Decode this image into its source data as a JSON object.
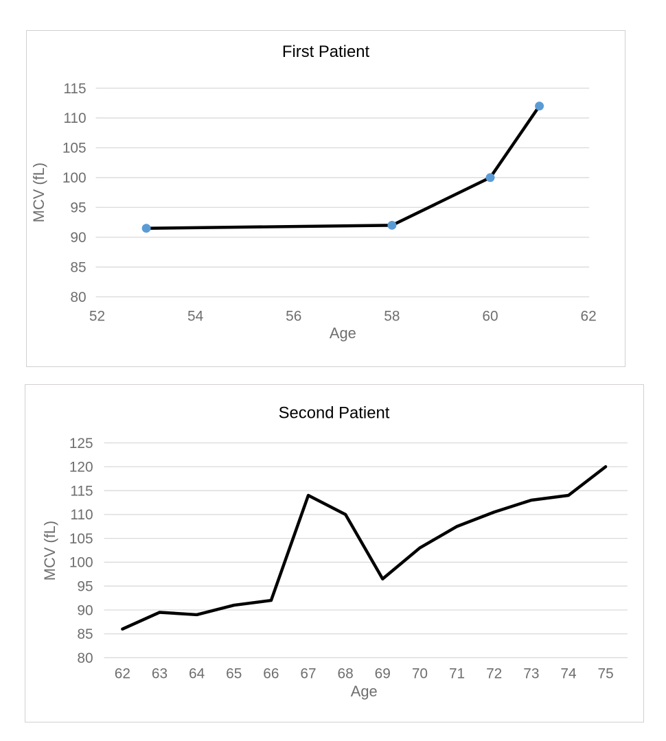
{
  "style": {
    "background": "#ffffff",
    "panel_border_color": "#d2d0d0",
    "grid_color": "#d9d9d9",
    "tick_label_color": "#6e6e6e",
    "axis_label_color": "#6e6e6e",
    "title_color": "#000000",
    "line_color": "#000000",
    "marker_color": "#5b9bd5"
  },
  "chart_data": [
    {
      "type": "line",
      "title": "First Patient",
      "xlabel": "Age",
      "ylabel": "MCV (fL)",
      "x": [
        53,
        58,
        60,
        61
      ],
      "y": [
        91.5,
        92,
        100,
        112
      ],
      "xticks": [
        52,
        54,
        56,
        58,
        60,
        62
      ],
      "yticks": [
        80,
        85,
        90,
        95,
        100,
        105,
        110,
        115
      ],
      "xlim": [
        52,
        62
      ],
      "ylim": [
        80,
        115
      ],
      "grid": true,
      "markers": true,
      "legend": "none"
    },
    {
      "type": "line",
      "title": "Second Patient",
      "xlabel": "Age",
      "ylabel": "MCV (fL)",
      "x": [
        62,
        63,
        64,
        65,
        66,
        67,
        68,
        69,
        70,
        71,
        72,
        73,
        74,
        75
      ],
      "y": [
        86,
        89.5,
        89,
        91,
        92,
        114,
        110,
        96.5,
        103,
        107.5,
        110.5,
        113,
        114,
        120
      ],
      "xticks": [
        62,
        63,
        64,
        65,
        66,
        67,
        68,
        69,
        70,
        71,
        72,
        73,
        74,
        75
      ],
      "yticks": [
        80,
        85,
        90,
        95,
        100,
        105,
        110,
        115,
        120,
        125
      ],
      "xlim": [
        62,
        75
      ],
      "ylim": [
        80,
        125
      ],
      "grid": true,
      "markers": false,
      "legend": "none"
    }
  ]
}
